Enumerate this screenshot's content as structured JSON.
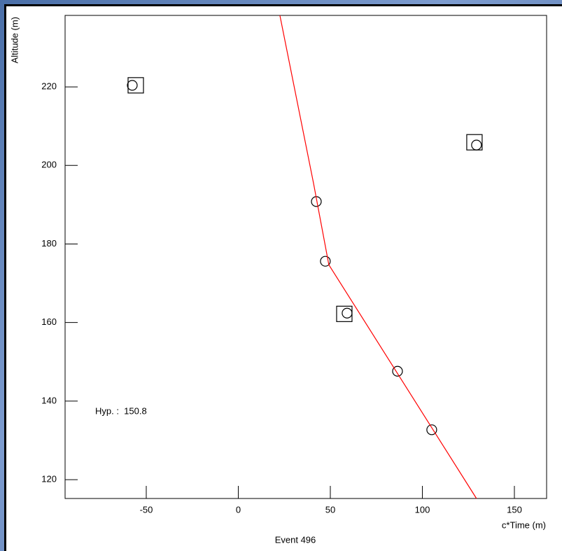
{
  "chart_data": {
    "type": "scatter",
    "ylabel": "Altitude (m)",
    "xlabel": "c*Time (m)",
    "caption": "Event 496",
    "annotation": "Hyp. :  150.8",
    "xlim": [
      -94.1,
      167.5
    ],
    "xticks": [
      -50,
      0,
      50,
      100,
      150
    ],
    "ylim": [
      115.2,
      238.2
    ],
    "yticks": [
      120,
      140,
      160,
      180,
      200,
      220
    ],
    "series": [
      {
        "style": "circle",
        "color": "#000000",
        "x": [
          -57.6,
          42.4,
          47.3,
          59.1,
          86.5,
          105.1,
          129.4
        ],
        "values": [
          220.4,
          190.8,
          175.6,
          162.4,
          147.6,
          132.7,
          205.2
        ]
      },
      {
        "style": "square",
        "color": "#000000",
        "x": [
          -55.7,
          57.6,
          128.3
        ],
        "values": [
          220.4,
          162.2,
          205.9
        ]
      },
      {
        "style": "line",
        "color": "#ff0000",
        "x": [
          22.6,
          40.9,
          49.2,
          129.4
        ],
        "values": [
          238.2,
          195.4,
          174.7,
          115.2
        ]
      }
    ]
  }
}
